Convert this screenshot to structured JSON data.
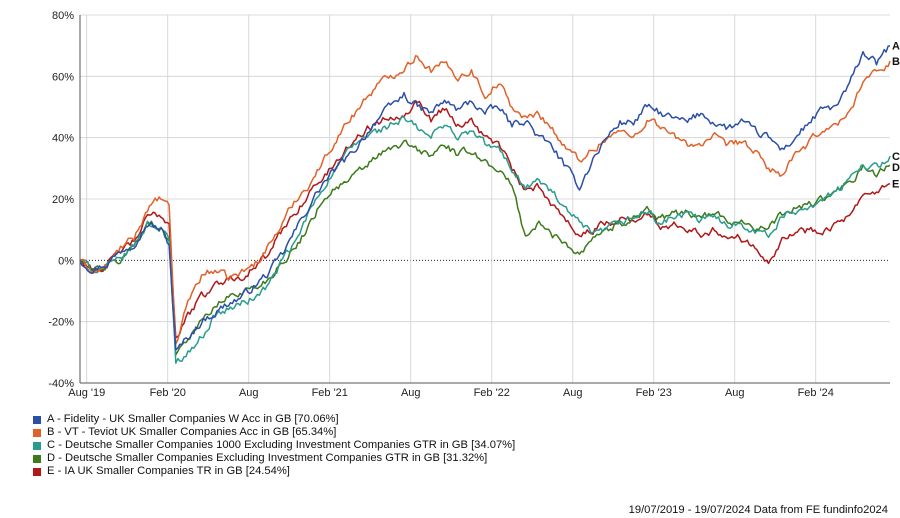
{
  "chart_data": {
    "type": "line",
    "y_ticks": [
      "80%",
      "60%",
      "40%",
      "20%",
      "0%",
      "-20%",
      "-40%"
    ],
    "x_ticks": [
      "Aug '19",
      "Feb '20",
      "Aug",
      "Feb '21",
      "Aug",
      "Feb '22",
      "Aug",
      "Feb '23",
      "Aug",
      "Feb '24"
    ],
    "x_tick_months": [
      0.5,
      6.5,
      12.5,
      18.5,
      24.5,
      30.5,
      36.5,
      42.5,
      48.5,
      54.5
    ],
    "x_range_months": [
      0,
      60
    ],
    "ylim": [
      -40,
      80
    ],
    "grid": true,
    "zero_line": "dotted",
    "series": [
      {
        "letter": "A",
        "name": "Fidelity - UK Smaller Companies W Acc in GB [70.06%]",
        "color": "#2b4fa8",
        "points": [
          [
            0,
            0
          ],
          [
            1,
            -3
          ],
          [
            2,
            -1
          ],
          [
            3,
            3
          ],
          [
            4,
            6
          ],
          [
            5,
            12
          ],
          [
            6,
            10
          ],
          [
            6.6,
            5
          ],
          [
            7.1,
            -30
          ],
          [
            8,
            -25
          ],
          [
            9,
            -20
          ],
          [
            10,
            -17
          ],
          [
            11,
            -14
          ],
          [
            12,
            -12
          ],
          [
            13,
            -8
          ],
          [
            14,
            -4
          ],
          [
            15,
            2
          ],
          [
            16,
            10
          ],
          [
            17,
            18
          ],
          [
            18,
            25
          ],
          [
            19,
            30
          ],
          [
            20,
            34
          ],
          [
            21,
            40
          ],
          [
            22,
            46
          ],
          [
            23,
            50
          ],
          [
            24,
            54
          ],
          [
            25,
            50
          ],
          [
            26,
            48
          ],
          [
            27,
            52
          ],
          [
            28,
            49
          ],
          [
            29,
            52
          ],
          [
            30,
            48
          ],
          [
            31,
            50
          ],
          [
            32,
            44
          ],
          [
            33,
            46
          ],
          [
            34,
            40
          ],
          [
            35,
            37
          ],
          [
            36,
            30
          ],
          [
            37,
            24
          ],
          [
            38,
            33
          ],
          [
            39,
            40
          ],
          [
            40,
            45
          ],
          [
            41,
            45
          ],
          [
            42,
            50
          ],
          [
            43,
            48
          ],
          [
            44,
            46
          ],
          [
            45,
            45
          ],
          [
            46,
            48
          ],
          [
            47,
            45
          ],
          [
            48,
            43
          ],
          [
            49,
            45
          ],
          [
            50,
            42
          ],
          [
            51,
            40
          ],
          [
            52,
            36
          ],
          [
            53,
            40
          ],
          [
            54,
            45
          ],
          [
            55,
            49
          ],
          [
            56,
            50
          ],
          [
            57,
            57
          ],
          [
            58,
            68
          ],
          [
            59,
            64
          ],
          [
            60,
            70
          ]
        ]
      },
      {
        "letter": "B",
        "name": "VT - Teviot UK Smaller Companies Acc in GB [65.34%]",
        "color": "#e0622a",
        "points": [
          [
            0,
            0
          ],
          [
            1,
            -4
          ],
          [
            2,
            -2
          ],
          [
            3,
            4
          ],
          [
            4,
            7
          ],
          [
            5,
            17
          ],
          [
            6,
            20
          ],
          [
            6.6,
            17
          ],
          [
            7.1,
            -28
          ],
          [
            8,
            -13
          ],
          [
            9,
            -5
          ],
          [
            10,
            -3
          ],
          [
            11,
            -6
          ],
          [
            12,
            -4
          ],
          [
            13,
            -1
          ],
          [
            14,
            5
          ],
          [
            15,
            12
          ],
          [
            16,
            20
          ],
          [
            17,
            25
          ],
          [
            18,
            32
          ],
          [
            19,
            40
          ],
          [
            20,
            46
          ],
          [
            21,
            52
          ],
          [
            22,
            57
          ],
          [
            23,
            60
          ],
          [
            24,
            63
          ],
          [
            25,
            67
          ],
          [
            26,
            62
          ],
          [
            27,
            64
          ],
          [
            28,
            60
          ],
          [
            29,
            62
          ],
          [
            30,
            54
          ],
          [
            31,
            58
          ],
          [
            32,
            50
          ],
          [
            33,
            46
          ],
          [
            34,
            48
          ],
          [
            35,
            43
          ],
          [
            36,
            36
          ],
          [
            37,
            33
          ],
          [
            38,
            36
          ],
          [
            39,
            40
          ],
          [
            40,
            42
          ],
          [
            41,
            40
          ],
          [
            42,
            46
          ],
          [
            43,
            44
          ],
          [
            44,
            40
          ],
          [
            45,
            38
          ],
          [
            46,
            38
          ],
          [
            47,
            40
          ],
          [
            48,
            37
          ],
          [
            49,
            39
          ],
          [
            50,
            35
          ],
          [
            51,
            30
          ],
          [
            52,
            28
          ],
          [
            53,
            34
          ],
          [
            54,
            38
          ],
          [
            55,
            43
          ],
          [
            56,
            44
          ],
          [
            57,
            48
          ],
          [
            58,
            59
          ],
          [
            59,
            61
          ],
          [
            60,
            65
          ]
        ]
      },
      {
        "letter": "C",
        "name": "C - Deutsche Smaller Companies 1000 Excluding Investment Companies GTR in GB [34.07%]",
        "color": "#2a9c8e",
        "points": [
          [
            0,
            0
          ],
          [
            1,
            -3
          ],
          [
            2,
            -2
          ],
          [
            3,
            0
          ],
          [
            4,
            5
          ],
          [
            5,
            12
          ],
          [
            6,
            11
          ],
          [
            6.6,
            6
          ],
          [
            7.1,
            -33
          ],
          [
            8,
            -30
          ],
          [
            9,
            -25
          ],
          [
            10,
            -18
          ],
          [
            11,
            -16
          ],
          [
            12,
            -14
          ],
          [
            13,
            -12
          ],
          [
            14,
            -8
          ],
          [
            15,
            0
          ],
          [
            16,
            6
          ],
          [
            17,
            16
          ],
          [
            18,
            24
          ],
          [
            19,
            30
          ],
          [
            20,
            36
          ],
          [
            21,
            40
          ],
          [
            22,
            42
          ],
          [
            23,
            44
          ],
          [
            24,
            46
          ],
          [
            25,
            43
          ],
          [
            26,
            40
          ],
          [
            27,
            45
          ],
          [
            28,
            40
          ],
          [
            29,
            42
          ],
          [
            30,
            38
          ],
          [
            31,
            36
          ],
          [
            32,
            30
          ],
          [
            33,
            24
          ],
          [
            34,
            26
          ],
          [
            35,
            22
          ],
          [
            36,
            16
          ],
          [
            37,
            12
          ],
          [
            38,
            8
          ],
          [
            39,
            10
          ],
          [
            40,
            12
          ],
          [
            41,
            14
          ],
          [
            42,
            16
          ],
          [
            43,
            12
          ],
          [
            44,
            14
          ],
          [
            45,
            15
          ],
          [
            46,
            13
          ],
          [
            47,
            14
          ],
          [
            48,
            12
          ],
          [
            49,
            12
          ],
          [
            50,
            10
          ],
          [
            51,
            8
          ],
          [
            52,
            14
          ],
          [
            53,
            16
          ],
          [
            54,
            18
          ],
          [
            55,
            20
          ],
          [
            56,
            22
          ],
          [
            57,
            26
          ],
          [
            58,
            32
          ],
          [
            59,
            30
          ],
          [
            60,
            34
          ]
        ]
      },
      {
        "letter": "D",
        "name": "D - Deutsche Smaller Companies Excluding Investment Companies GTR in GB [31.32%]",
        "color": "#3c7a1c",
        "points": [
          [
            0,
            0
          ],
          [
            1,
            -3
          ],
          [
            2,
            -2
          ],
          [
            3,
            0
          ],
          [
            4,
            5
          ],
          [
            5,
            12
          ],
          [
            6,
            11
          ],
          [
            6.6,
            6
          ],
          [
            7.1,
            -30
          ],
          [
            8,
            -25
          ],
          [
            9,
            -20
          ],
          [
            10,
            -15
          ],
          [
            11,
            -12
          ],
          [
            12,
            -10
          ],
          [
            13,
            -9
          ],
          [
            14,
            -6
          ],
          [
            15,
            0
          ],
          [
            16,
            4
          ],
          [
            17,
            12
          ],
          [
            18,
            20
          ],
          [
            19,
            24
          ],
          [
            20,
            26
          ],
          [
            21,
            30
          ],
          [
            22,
            34
          ],
          [
            23,
            36
          ],
          [
            24,
            38
          ],
          [
            25,
            36
          ],
          [
            26,
            34
          ],
          [
            27,
            38
          ],
          [
            28,
            34
          ],
          [
            29,
            36
          ],
          [
            30,
            32
          ],
          [
            31,
            30
          ],
          [
            32,
            24
          ],
          [
            33,
            8
          ],
          [
            34,
            12
          ],
          [
            35,
            8
          ],
          [
            36,
            6
          ],
          [
            37,
            2
          ],
          [
            38,
            8
          ],
          [
            39,
            10
          ],
          [
            40,
            12
          ],
          [
            41,
            14
          ],
          [
            42,
            17
          ],
          [
            43,
            13
          ],
          [
            44,
            15
          ],
          [
            45,
            16
          ],
          [
            46,
            14
          ],
          [
            47,
            15
          ],
          [
            48,
            13
          ],
          [
            49,
            13
          ],
          [
            50,
            11
          ],
          [
            51,
            10
          ],
          [
            52,
            15
          ],
          [
            53,
            17
          ],
          [
            54,
            18
          ],
          [
            55,
            20
          ],
          [
            56,
            22
          ],
          [
            57,
            25
          ],
          [
            58,
            30
          ],
          [
            59,
            28
          ],
          [
            60,
            31
          ]
        ]
      },
      {
        "letter": "E",
        "name": "E - IA UK Smaller Companies TR in GB [24.54%]",
        "color": "#b01818",
        "points": [
          [
            0,
            0
          ],
          [
            1,
            -3
          ],
          [
            2,
            -2
          ],
          [
            3,
            3
          ],
          [
            4,
            6
          ],
          [
            5,
            14
          ],
          [
            6,
            15
          ],
          [
            6.6,
            12
          ],
          [
            7.1,
            -25
          ],
          [
            8,
            -18
          ],
          [
            9,
            -12
          ],
          [
            10,
            -8
          ],
          [
            11,
            -6
          ],
          [
            12,
            -5
          ],
          [
            13,
            -2
          ],
          [
            14,
            2
          ],
          [
            15,
            10
          ],
          [
            16,
            16
          ],
          [
            17,
            22
          ],
          [
            18,
            27
          ],
          [
            19,
            32
          ],
          [
            20,
            38
          ],
          [
            21,
            42
          ],
          [
            22,
            45
          ],
          [
            23,
            47
          ],
          [
            24,
            48
          ],
          [
            25,
            52
          ],
          [
            26,
            46
          ],
          [
            27,
            50
          ],
          [
            28,
            44
          ],
          [
            29,
            46
          ],
          [
            30,
            40
          ],
          [
            31,
            38
          ],
          [
            32,
            30
          ],
          [
            33,
            22
          ],
          [
            34,
            24
          ],
          [
            35,
            18
          ],
          [
            36,
            14
          ],
          [
            37,
            8
          ],
          [
            38,
            10
          ],
          [
            39,
            12
          ],
          [
            40,
            14
          ],
          [
            41,
            13
          ],
          [
            42,
            15
          ],
          [
            43,
            11
          ],
          [
            44,
            12
          ],
          [
            45,
            11
          ],
          [
            46,
            9
          ],
          [
            47,
            10
          ],
          [
            48,
            8
          ],
          [
            49,
            7
          ],
          [
            50,
            5
          ],
          [
            51,
            0
          ],
          [
            52,
            7
          ],
          [
            53,
            9
          ],
          [
            54,
            10
          ],
          [
            55,
            10
          ],
          [
            56,
            12
          ],
          [
            57,
            14
          ],
          [
            58,
            20
          ],
          [
            59,
            22
          ],
          [
            60,
            25
          ]
        ]
      }
    ]
  },
  "legend": [
    {
      "label": "A - Fidelity - UK Smaller Companies W Acc in GB [70.06%]",
      "color": "#2b4fa8"
    },
    {
      "label": "B - VT - Teviot UK Smaller Companies Acc in GB [65.34%]",
      "color": "#e0622a"
    },
    {
      "label": "C - Deutsche Smaller Companies 1000 Excluding Investment Companies GTR in GB [34.07%]",
      "color": "#2a9c8e"
    },
    {
      "label": "D - Deutsche Smaller Companies Excluding Investment Companies GTR in GB [31.32%]",
      "color": "#3c7a1c"
    },
    {
      "label": "E - IA UK Smaller Companies TR in GB [24.54%]",
      "color": "#b01818"
    }
  ],
  "footer": "19/07/2019 - 19/07/2024 Data from FE fundinfo2024"
}
